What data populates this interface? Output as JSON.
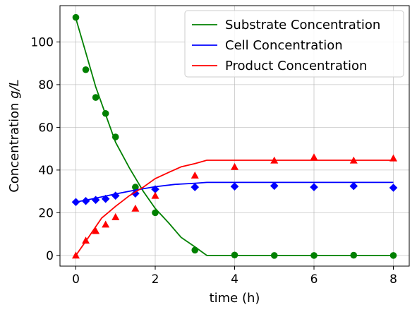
{
  "chart_data": {
    "type": "line",
    "title": "",
    "xlabel": "time (h)",
    "ylabel_prefix": "Concentration ",
    "ylabel_unit": "g/L",
    "xlim": [
      -0.4,
      8.4
    ],
    "ylim": [
      -5,
      117
    ],
    "xticks": [
      0,
      2,
      4,
      6,
      8
    ],
    "yticks": [
      0,
      20,
      40,
      60,
      80,
      100
    ],
    "grid": true,
    "legend_position": "top-right",
    "series": [
      {
        "name": "Substrate Concentration",
        "color": "#008000",
        "marker": "circle",
        "model_x": [
          0,
          0.25,
          0.5,
          0.75,
          1.0,
          1.35,
          1.7,
          2.0,
          2.35,
          2.65,
          3.0,
          3.3,
          4,
          5,
          6,
          7,
          8
        ],
        "model_y": [
          111,
          95,
          79,
          66,
          53,
          41,
          30,
          22,
          15,
          8.5,
          4,
          0,
          0,
          0,
          0,
          0,
          0
        ],
        "points_x": [
          0,
          0.25,
          0.5,
          0.75,
          1.0,
          1.5,
          2.0,
          3.0,
          4,
          5,
          6,
          7,
          8
        ],
        "points_y": [
          111.5,
          87,
          74,
          66.5,
          55.5,
          32,
          20,
          2.5,
          0.2,
          0,
          0,
          0.1,
          0
        ]
      },
      {
        "name": "Cell Concentration",
        "color": "#0000ff",
        "marker": "diamond",
        "model_x": [
          0,
          0.5,
          1.0,
          1.5,
          2.0,
          2.5,
          3.0,
          3.3,
          4,
          5,
          6,
          7,
          8
        ],
        "model_y": [
          25,
          26.8,
          28.8,
          30.6,
          32.2,
          33.3,
          33.8,
          34.2,
          34.2,
          34.2,
          34.2,
          34.2,
          34.2
        ],
        "points_x": [
          0,
          0.25,
          0.5,
          0.75,
          1.0,
          1.5,
          2.0,
          3.0,
          4,
          5,
          6,
          7,
          8
        ],
        "points_y": [
          25,
          25.5,
          26,
          26.5,
          28,
          29,
          31,
          32,
          32.3,
          32.6,
          32,
          32.5,
          31.7
        ]
      },
      {
        "name": "Product Concentration",
        "color": "#ff0000",
        "marker": "triangle",
        "model_x": [
          0,
          0.3,
          0.65,
          1.0,
          1.35,
          1.7,
          2.0,
          2.35,
          2.65,
          3.0,
          3.3,
          4,
          5,
          6,
          7,
          8
        ],
        "model_y": [
          0,
          8,
          17.5,
          23,
          28,
          32,
          36,
          39,
          41.5,
          43,
          44.6,
          44.6,
          44.6,
          44.6,
          44.6,
          44.6
        ],
        "points_x": [
          0,
          0.25,
          0.5,
          0.75,
          1.0,
          1.5,
          2.0,
          3.0,
          4,
          5,
          6,
          7,
          8
        ],
        "points_y": [
          0,
          7,
          11.5,
          14.5,
          18,
          22,
          28,
          37.5,
          41.5,
          44.5,
          46,
          44.5,
          45.5
        ]
      }
    ]
  }
}
